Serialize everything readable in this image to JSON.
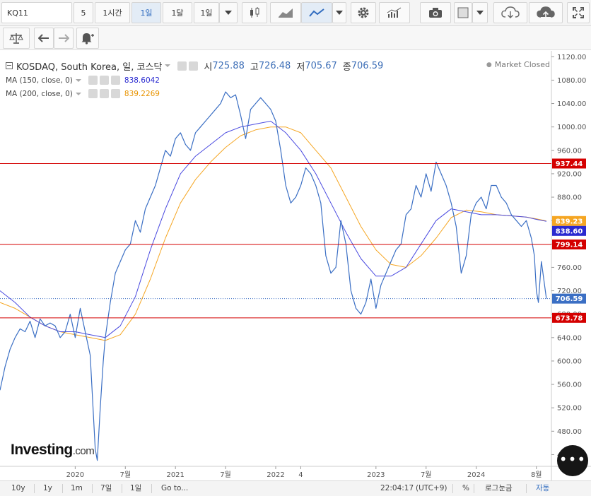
{
  "toolbar": {
    "symbol": "KQ11",
    "interval_5": "5",
    "interval_1h": "1시간",
    "interval_1d": "1일",
    "interval_1mo": "1달",
    "range": "1일",
    "icons": [
      "candlestick-icon",
      "area-chart-icon",
      "line-chart-icon",
      "chevron-down-icon",
      "gear-icon",
      "indicators-icon",
      "camera-icon",
      "color-square-icon",
      "cloud-download-icon",
      "cloud-upload-icon",
      "fullscreen-icon",
      "scale-icon",
      "undo-icon",
      "redo-icon",
      "alert-add-icon"
    ]
  },
  "legend": {
    "symbol_name": "KOSDAQ, South Korea, 일, 코스닥",
    "open_label": "시",
    "open": "725.88",
    "high_label": "고",
    "high": "726.48",
    "low_label": "저",
    "low": "705.67",
    "close_label": "종",
    "close": "706.59",
    "market_status": "Market Closed",
    "ma150_label": "MA (150, close, 0)",
    "ma150_value": "838.6042",
    "ma200_label": "MA (200, close, 0)",
    "ma200_value": "839.2269"
  },
  "colors": {
    "price_line": "#3b6fc4",
    "ma150": "#4a4ae0",
    "ma200": "#f5a623",
    "hline": "#d40000",
    "last_price": "#3b6fc4"
  },
  "chart_data": {
    "type": "line",
    "price_axis": {
      "ticks": [
        440,
        480,
        520,
        560,
        600,
        640,
        680,
        720,
        760,
        800,
        840,
        880,
        920,
        960,
        1000,
        1040,
        1080,
        1120
      ],
      "range": [
        420,
        1130
      ]
    },
    "time_axis": {
      "labels": [
        "2020",
        "7월",
        "2021",
        "7월",
        "2022",
        "4",
        "2023",
        "7월",
        "2024",
        "8월"
      ],
      "label_dates": [
        2020.0,
        2020.5,
        2021.0,
        2021.5,
        2022.0,
        2022.25,
        2023.0,
        2023.5,
        2024.0,
        2024.6
      ],
      "range": [
        2019.25,
        2024.75
      ]
    },
    "series": [
      {
        "x": [
          2019.25,
          2019.3,
          2019.35,
          2019.4,
          2019.45,
          2019.5,
          2019.55,
          2019.6,
          2019.65,
          2019.7,
          2019.75,
          2019.8,
          2019.85,
          2019.9,
          2019.95,
          2020.0,
          2020.05,
          2020.1,
          2020.15,
          2020.2,
          2020.22,
          2020.25,
          2020.28,
          2020.3,
          2020.35,
          2020.4,
          2020.45,
          2020.5,
          2020.55,
          2020.6,
          2020.65,
          2020.7,
          2020.75,
          2020.8,
          2020.85,
          2020.9,
          2020.95,
          2021.0,
          2021.05,
          2021.1,
          2021.15,
          2021.2,
          2021.25,
          2021.3,
          2021.35,
          2021.4,
          2021.45,
          2021.5,
          2021.55,
          2021.6,
          2021.65,
          2021.7,
          2021.75,
          2021.8,
          2021.85,
          2021.9,
          2021.95,
          2022.0,
          2022.05,
          2022.1,
          2022.15,
          2022.2,
          2022.25,
          2022.3,
          2022.35,
          2022.4,
          2022.45,
          2022.5,
          2022.55,
          2022.6,
          2022.65,
          2022.7,
          2022.75,
          2022.8,
          2022.85,
          2022.9,
          2022.95,
          2023.0,
          2023.05,
          2023.1,
          2023.15,
          2023.2,
          2023.25,
          2023.3,
          2023.35,
          2023.4,
          2023.45,
          2023.5,
          2023.55,
          2023.6,
          2023.65,
          2023.7,
          2023.75,
          2023.8,
          2023.85,
          2023.9,
          2023.95,
          2024.0,
          2024.05,
          2024.1,
          2024.15,
          2024.2,
          2024.25,
          2024.3,
          2024.35,
          2024.4,
          2024.45,
          2024.5,
          2024.55,
          2024.58,
          2024.6,
          2024.62,
          2024.65,
          2024.7
        ],
        "values": [
          550,
          590,
          620,
          640,
          655,
          650,
          668,
          640,
          672,
          660,
          665,
          660,
          640,
          650,
          680,
          640,
          690,
          650,
          610,
          450,
          430,
          520,
          600,
          640,
          700,
          750,
          770,
          790,
          800,
          840,
          820,
          860,
          880,
          900,
          930,
          960,
          950,
          980,
          990,
          970,
          960,
          990,
          1000,
          1010,
          1020,
          1030,
          1040,
          1060,
          1050,
          1055,
          1020,
          980,
          1030,
          1040,
          1050,
          1040,
          1030,
          1010,
          960,
          900,
          870,
          880,
          900,
          930,
          920,
          900,
          870,
          780,
          750,
          760,
          840,
          800,
          720,
          690,
          680,
          700,
          740,
          690,
          730,
          750,
          770,
          790,
          800,
          850,
          860,
          900,
          880,
          920,
          890,
          940,
          920,
          900,
          870,
          830,
          750,
          780,
          850,
          870,
          880,
          860,
          900,
          900,
          880,
          870,
          850,
          840,
          830,
          840,
          810,
          780,
          720,
          700,
          770,
          706.59
        ],
        "name": "",
        "color": "#3b6fc4"
      },
      {
        "x": [
          2019.25,
          2019.4,
          2019.55,
          2019.7,
          2019.85,
          2020.0,
          2020.15,
          2020.3,
          2020.45,
          2020.6,
          2020.75,
          2020.9,
          2021.05,
          2021.2,
          2021.35,
          2021.5,
          2021.65,
          2021.8,
          2021.95,
          2022.1,
          2022.25,
          2022.4,
          2022.55,
          2022.7,
          2022.85,
          2023.0,
          2023.15,
          2023.3,
          2023.45,
          2023.6,
          2023.75,
          2023.9,
          2024.05,
          2024.2,
          2024.35,
          2024.5,
          2024.6,
          2024.7
        ],
        "values": [
          720,
          700,
          675,
          660,
          650,
          650,
          645,
          640,
          660,
          710,
          790,
          860,
          920,
          950,
          970,
          990,
          1000,
          1005,
          1010,
          990,
          960,
          920,
          870,
          820,
          775,
          745,
          745,
          760,
          800,
          840,
          860,
          855,
          850,
          850,
          848,
          846,
          842,
          838.6
        ],
        "name": "MA (150, close, 0)",
        "color": "#4a4ae0"
      },
      {
        "x": [
          2019.25,
          2019.4,
          2019.55,
          2019.7,
          2019.85,
          2020.0,
          2020.15,
          2020.3,
          2020.45,
          2020.6,
          2020.75,
          2020.9,
          2021.05,
          2021.2,
          2021.35,
          2021.5,
          2021.65,
          2021.8,
          2021.95,
          2022.1,
          2022.25,
          2022.4,
          2022.55,
          2022.7,
          2022.85,
          2023.0,
          2023.15,
          2023.3,
          2023.45,
          2023.6,
          2023.75,
          2023.9,
          2024.05,
          2024.2,
          2024.35,
          2024.5,
          2024.6,
          2024.7
        ],
        "values": [
          700,
          690,
          675,
          660,
          650,
          645,
          640,
          635,
          645,
          680,
          740,
          810,
          870,
          910,
          940,
          965,
          985,
          995,
          1000,
          1000,
          990,
          960,
          930,
          880,
          830,
          790,
          765,
          760,
          780,
          810,
          845,
          858,
          855,
          850,
          848,
          846,
          843,
          839.2
        ],
        "name": "MA (200, close, 0)",
        "color": "#f5a623"
      }
    ],
    "horizontal_lines": [
      {
        "value": 937.44,
        "label": "937.44",
        "color": "#d40000"
      },
      {
        "value": 799.14,
        "label": "799.14",
        "color": "#d40000"
      },
      {
        "value": 673.78,
        "label": "673.78",
        "color": "#d40000"
      }
    ],
    "price_labels": [
      {
        "value": 839.23,
        "label": "839.23",
        "color": "#f5a623"
      },
      {
        "value": 838.6,
        "label": "838.60",
        "color": "#2a2ad0"
      },
      {
        "value": 706.59,
        "label": "706.59",
        "color": "#3b6fc4"
      }
    ],
    "grid": false
  },
  "brand": {
    "name": "Investing",
    "suffix": ".com"
  },
  "bottombar": {
    "ranges": [
      "10y",
      "1y",
      "1m",
      "7일",
      "1일"
    ],
    "goto": "Go to...",
    "time": "22:04:17",
    "timezone": "(UTC+9)",
    "percent": "%",
    "log": "로그눈금",
    "auto": "자동"
  },
  "fab": {
    "label": "•••"
  }
}
